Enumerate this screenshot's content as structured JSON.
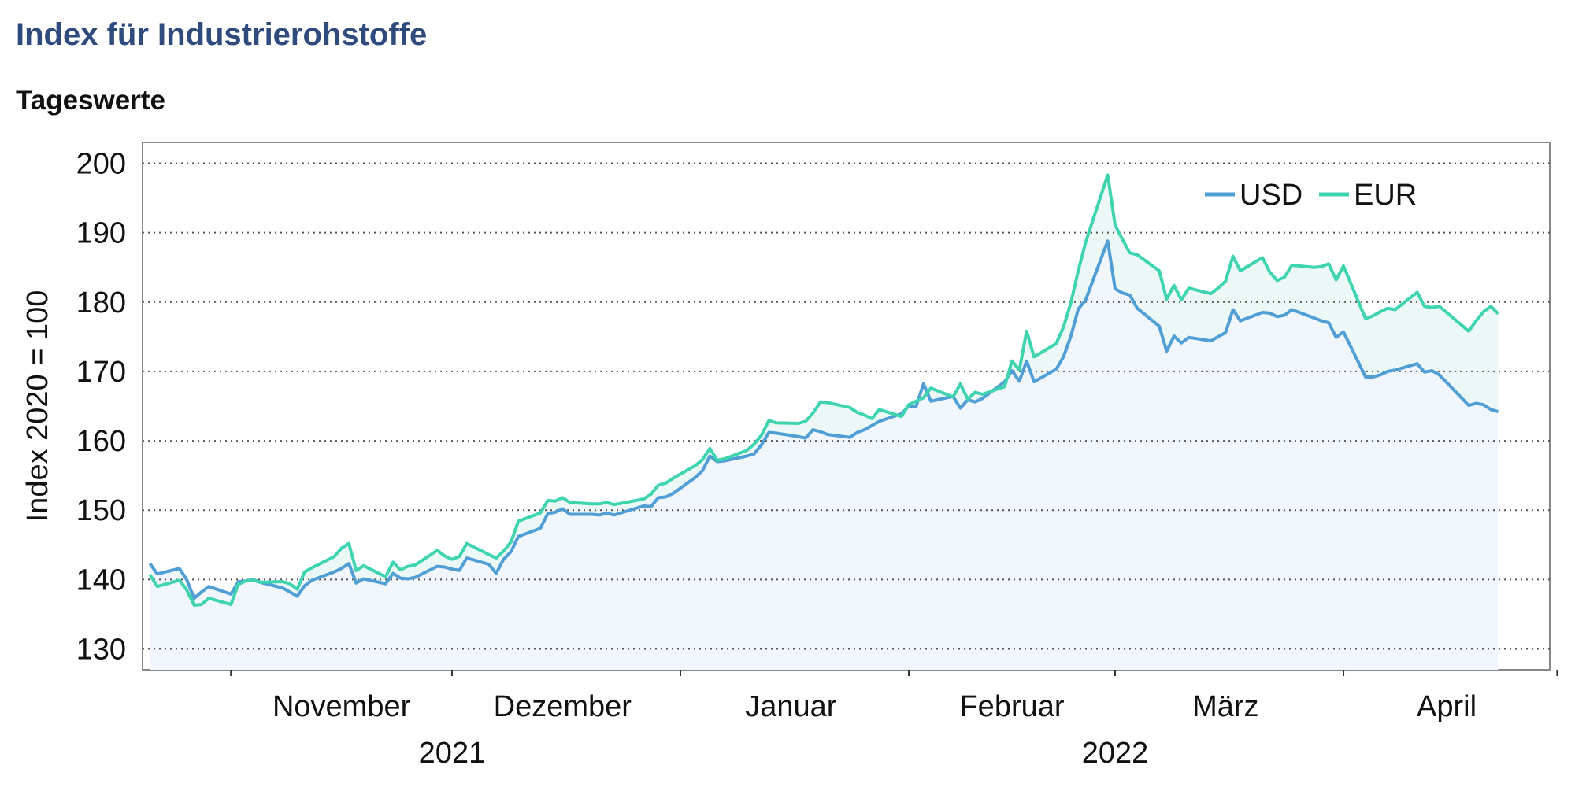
{
  "header": {
    "title": "Index für Industrierohstoffe",
    "subtitle": "Tageswerte"
  },
  "chart_data": {
    "type": "area",
    "title": "Index für Industrierohstoffe",
    "subtitle": "Tageswerte",
    "xlabel": "",
    "ylabel": "Index 2020 = 100",
    "ylim": [
      127,
      203
    ],
    "yticks": [
      130,
      140,
      150,
      160,
      170,
      180,
      190,
      200
    ],
    "grid": true,
    "legend_position": "top-right",
    "x_range": [
      "2021-10-20",
      "2022-04-29"
    ],
    "month_labels": [
      {
        "label": "November",
        "date": "2021-11-16"
      },
      {
        "label": "Dezember",
        "date": "2021-12-16"
      },
      {
        "label": "Januar",
        "date": "2022-01-16"
      },
      {
        "label": "Februar",
        "date": "2022-02-15"
      },
      {
        "label": "März",
        "date": "2022-03-16"
      },
      {
        "label": "April",
        "date": "2022-04-15"
      }
    ],
    "month_boundaries": [
      "2021-11-01",
      "2021-12-01",
      "2022-01-01",
      "2022-02-01",
      "2022-03-01",
      "2022-04-01",
      "2022-04-30"
    ],
    "year_labels": [
      {
        "label": "2021",
        "date": "2021-12-01"
      },
      {
        "label": "2022",
        "date": "2022-03-01"
      }
    ],
    "colors": {
      "USD": "#4f9fd6",
      "EUR": "#3fd4b0",
      "fill": "#f0f6fb",
      "grid": "#555555"
    },
    "series": [
      {
        "name": "USD",
        "color": "#4f9fd6",
        "points": [
          [
            "2021-10-21",
            142.3
          ],
          [
            "2021-10-22",
            140.8
          ],
          [
            "2021-10-25",
            141.6
          ],
          [
            "2021-10-26",
            140.0
          ],
          [
            "2021-10-27",
            137.3
          ],
          [
            "2021-10-28",
            138.2
          ],
          [
            "2021-10-29",
            139.0
          ],
          [
            "2021-11-01",
            137.9
          ],
          [
            "2021-11-02",
            139.7
          ],
          [
            "2021-11-03",
            139.8
          ],
          [
            "2021-11-04",
            140.0
          ],
          [
            "2021-11-05",
            139.6
          ],
          [
            "2021-11-08",
            138.8
          ],
          [
            "2021-11-09",
            138.2
          ],
          [
            "2021-11-10",
            137.6
          ],
          [
            "2021-11-11",
            139.1
          ],
          [
            "2021-11-12",
            139.9
          ],
          [
            "2021-11-15",
            141.1
          ],
          [
            "2021-11-16",
            141.6
          ],
          [
            "2021-11-17",
            142.3
          ],
          [
            "2021-11-18",
            139.5
          ],
          [
            "2021-11-19",
            140.1
          ],
          [
            "2021-11-22",
            139.4
          ],
          [
            "2021-11-23",
            140.9
          ],
          [
            "2021-11-24",
            140.2
          ],
          [
            "2021-11-25",
            140.1
          ],
          [
            "2021-11-26",
            140.3
          ],
          [
            "2021-11-29",
            141.9
          ],
          [
            "2021-11-30",
            141.8
          ],
          [
            "2021-12-01",
            141.5
          ],
          [
            "2021-12-02",
            141.3
          ],
          [
            "2021-12-03",
            143.1
          ],
          [
            "2021-12-06",
            142.2
          ],
          [
            "2021-12-07",
            140.9
          ],
          [
            "2021-12-08",
            142.9
          ],
          [
            "2021-12-09",
            144.0
          ],
          [
            "2021-12-10",
            146.2
          ],
          [
            "2021-12-13",
            147.4
          ],
          [
            "2021-12-14",
            149.5
          ],
          [
            "2021-12-15",
            149.7
          ],
          [
            "2021-12-16",
            150.2
          ],
          [
            "2021-12-17",
            149.4
          ],
          [
            "2021-12-20",
            149.4
          ],
          [
            "2021-12-21",
            149.3
          ],
          [
            "2021-12-22",
            149.6
          ],
          [
            "2021-12-23",
            149.3
          ],
          [
            "2021-12-27",
            150.6
          ],
          [
            "2021-12-28",
            150.5
          ],
          [
            "2021-12-29",
            151.8
          ],
          [
            "2021-12-30",
            151.9
          ],
          [
            "2021-12-31",
            152.4
          ],
          [
            "2022-01-03",
            154.7
          ],
          [
            "2022-01-04",
            155.7
          ],
          [
            "2022-01-05",
            157.8
          ],
          [
            "2022-01-06",
            157.0
          ],
          [
            "2022-01-07",
            157.1
          ],
          [
            "2022-01-10",
            157.8
          ],
          [
            "2022-01-11",
            158.1
          ],
          [
            "2022-01-12",
            159.4
          ],
          [
            "2022-01-13",
            161.2
          ],
          [
            "2022-01-14",
            161.1
          ],
          [
            "2022-01-17",
            160.6
          ],
          [
            "2022-01-18",
            160.4
          ],
          [
            "2022-01-19",
            161.6
          ],
          [
            "2022-01-20",
            161.3
          ],
          [
            "2022-01-21",
            160.9
          ],
          [
            "2022-01-24",
            160.5
          ],
          [
            "2022-01-25",
            161.2
          ],
          [
            "2022-01-26",
            161.6
          ],
          [
            "2022-01-27",
            162.2
          ],
          [
            "2022-01-28",
            162.8
          ],
          [
            "2022-01-31",
            163.9
          ],
          [
            "2022-02-01",
            165.0
          ],
          [
            "2022-02-02",
            165.0
          ],
          [
            "2022-02-03",
            168.2
          ],
          [
            "2022-02-04",
            165.7
          ],
          [
            "2022-02-07",
            166.4
          ],
          [
            "2022-02-08",
            164.7
          ],
          [
            "2022-02-09",
            165.9
          ],
          [
            "2022-02-10",
            165.6
          ],
          [
            "2022-02-11",
            166.1
          ],
          [
            "2022-02-14",
            168.5
          ],
          [
            "2022-02-15",
            170.1
          ],
          [
            "2022-02-16",
            168.6
          ],
          [
            "2022-02-17",
            171.5
          ],
          [
            "2022-02-18",
            168.5
          ],
          [
            "2022-02-21",
            170.3
          ],
          [
            "2022-02-22",
            172.1
          ],
          [
            "2022-02-23",
            175.1
          ],
          [
            "2022-02-24",
            179.0
          ],
          [
            "2022-02-25",
            180.3
          ],
          [
            "2022-02-28",
            188.8
          ],
          [
            "2022-03-01",
            181.9
          ],
          [
            "2022-03-02",
            181.3
          ],
          [
            "2022-03-03",
            181.0
          ],
          [
            "2022-03-04",
            179.1
          ],
          [
            "2022-03-07",
            176.5
          ],
          [
            "2022-03-08",
            172.9
          ],
          [
            "2022-03-09",
            175.1
          ],
          [
            "2022-03-10",
            174.1
          ],
          [
            "2022-03-11",
            174.9
          ],
          [
            "2022-03-14",
            174.4
          ],
          [
            "2022-03-15",
            175.0
          ],
          [
            "2022-03-16",
            175.6
          ],
          [
            "2022-03-17",
            178.9
          ],
          [
            "2022-03-18",
            177.3
          ],
          [
            "2022-03-21",
            178.5
          ],
          [
            "2022-03-22",
            178.4
          ],
          [
            "2022-03-23",
            177.9
          ],
          [
            "2022-03-24",
            178.1
          ],
          [
            "2022-03-25",
            178.9
          ],
          [
            "2022-03-28",
            177.7
          ],
          [
            "2022-03-29",
            177.3
          ],
          [
            "2022-03-30",
            177.0
          ],
          [
            "2022-03-31",
            174.9
          ],
          [
            "2022-04-01",
            175.7
          ],
          [
            "2022-04-04",
            169.2
          ],
          [
            "2022-04-05",
            169.2
          ],
          [
            "2022-04-06",
            169.5
          ],
          [
            "2022-04-07",
            170.0
          ],
          [
            "2022-04-08",
            170.2
          ],
          [
            "2022-04-11",
            171.1
          ],
          [
            "2022-04-12",
            169.9
          ],
          [
            "2022-04-13",
            170.1
          ],
          [
            "2022-04-14",
            169.5
          ],
          [
            "2022-04-18",
            165.1
          ],
          [
            "2022-04-19",
            165.4
          ],
          [
            "2022-04-20",
            165.2
          ],
          [
            "2022-04-21",
            164.5
          ],
          [
            "2022-04-22",
            164.2
          ]
        ]
      },
      {
        "name": "EUR",
        "color": "#3fd4b0",
        "points": [
          [
            "2021-10-21",
            140.7
          ],
          [
            "2021-10-22",
            139.0
          ],
          [
            "2021-10-25",
            139.9
          ],
          [
            "2021-10-26",
            138.5
          ],
          [
            "2021-10-27",
            136.3
          ],
          [
            "2021-10-28",
            136.4
          ],
          [
            "2021-10-29",
            137.3
          ],
          [
            "2021-11-01",
            136.4
          ],
          [
            "2021-11-02",
            139.3
          ],
          [
            "2021-11-03",
            139.8
          ],
          [
            "2021-11-04",
            139.9
          ],
          [
            "2021-11-05",
            139.6
          ],
          [
            "2021-11-08",
            139.7
          ],
          [
            "2021-11-09",
            139.4
          ],
          [
            "2021-11-10",
            138.6
          ],
          [
            "2021-11-11",
            141.1
          ],
          [
            "2021-11-12",
            141.7
          ],
          [
            "2021-11-15",
            143.3
          ],
          [
            "2021-11-16",
            144.5
          ],
          [
            "2021-11-17",
            145.2
          ],
          [
            "2021-11-18",
            141.3
          ],
          [
            "2021-11-19",
            142.0
          ],
          [
            "2021-11-22",
            140.4
          ],
          [
            "2021-11-23",
            142.5
          ],
          [
            "2021-11-24",
            141.4
          ],
          [
            "2021-11-25",
            141.9
          ],
          [
            "2021-11-26",
            142.1
          ],
          [
            "2021-11-29",
            144.2
          ],
          [
            "2021-11-30",
            143.4
          ],
          [
            "2021-12-01",
            142.9
          ],
          [
            "2021-12-02",
            143.3
          ],
          [
            "2021-12-03",
            145.2
          ],
          [
            "2021-12-06",
            143.6
          ],
          [
            "2021-12-07",
            143.1
          ],
          [
            "2021-12-08",
            144.1
          ],
          [
            "2021-12-09",
            145.4
          ],
          [
            "2021-12-10",
            148.4
          ],
          [
            "2021-12-13",
            149.6
          ],
          [
            "2021-12-14",
            151.4
          ],
          [
            "2021-12-15",
            151.3
          ],
          [
            "2021-12-16",
            151.8
          ],
          [
            "2021-12-17",
            151.1
          ],
          [
            "2021-12-20",
            150.9
          ],
          [
            "2021-12-21",
            150.9
          ],
          [
            "2021-12-22",
            151.1
          ],
          [
            "2021-12-23",
            150.8
          ],
          [
            "2021-12-27",
            151.6
          ],
          [
            "2021-12-28",
            152.3
          ],
          [
            "2021-12-29",
            153.6
          ],
          [
            "2021-12-30",
            153.9
          ],
          [
            "2021-12-31",
            154.6
          ],
          [
            "2022-01-03",
            156.4
          ],
          [
            "2022-01-04",
            157.3
          ],
          [
            "2022-01-05",
            158.9
          ],
          [
            "2022-01-06",
            157.2
          ],
          [
            "2022-01-07",
            157.4
          ],
          [
            "2022-01-10",
            158.6
          ],
          [
            "2022-01-11",
            159.5
          ],
          [
            "2022-01-12",
            160.8
          ],
          [
            "2022-01-13",
            162.9
          ],
          [
            "2022-01-14",
            162.6
          ],
          [
            "2022-01-17",
            162.5
          ],
          [
            "2022-01-18",
            162.8
          ],
          [
            "2022-01-19",
            164.0
          ],
          [
            "2022-01-20",
            165.6
          ],
          [
            "2022-01-21",
            165.5
          ],
          [
            "2022-01-24",
            164.8
          ],
          [
            "2022-01-25",
            164.1
          ],
          [
            "2022-01-26",
            163.7
          ],
          [
            "2022-01-27",
            163.2
          ],
          [
            "2022-01-28",
            164.5
          ],
          [
            "2022-01-31",
            163.5
          ],
          [
            "2022-02-01",
            165.2
          ],
          [
            "2022-02-02",
            165.7
          ],
          [
            "2022-02-03",
            166.2
          ],
          [
            "2022-02-04",
            167.6
          ],
          [
            "2022-02-07",
            166.3
          ],
          [
            "2022-02-08",
            168.2
          ],
          [
            "2022-02-09",
            166.0
          ],
          [
            "2022-02-10",
            167.0
          ],
          [
            "2022-02-11",
            166.7
          ],
          [
            "2022-02-14",
            167.8
          ],
          [
            "2022-02-15",
            171.5
          ],
          [
            "2022-02-16",
            170.2
          ],
          [
            "2022-02-17",
            175.8
          ],
          [
            "2022-02-18",
            172.1
          ],
          [
            "2022-02-21",
            174.0
          ],
          [
            "2022-02-22",
            176.4
          ],
          [
            "2022-02-23",
            179.9
          ],
          [
            "2022-02-24",
            184.5
          ],
          [
            "2022-02-25",
            188.6
          ],
          [
            "2022-02-28",
            198.3
          ],
          [
            "2022-03-01",
            191.1
          ],
          [
            "2022-03-02",
            189.0
          ],
          [
            "2022-03-03",
            187.1
          ],
          [
            "2022-03-04",
            186.8
          ],
          [
            "2022-03-07",
            184.5
          ],
          [
            "2022-03-08",
            180.4
          ],
          [
            "2022-03-09",
            182.4
          ],
          [
            "2022-03-10",
            180.3
          ],
          [
            "2022-03-11",
            182.0
          ],
          [
            "2022-03-14",
            181.2
          ],
          [
            "2022-03-15",
            182.0
          ],
          [
            "2022-03-16",
            183.0
          ],
          [
            "2022-03-17",
            186.6
          ],
          [
            "2022-03-18",
            184.5
          ],
          [
            "2022-03-21",
            186.4
          ],
          [
            "2022-03-22",
            184.3
          ],
          [
            "2022-03-23",
            183.1
          ],
          [
            "2022-03-24",
            183.6
          ],
          [
            "2022-03-25",
            185.3
          ],
          [
            "2022-03-28",
            185.0
          ],
          [
            "2022-03-29",
            185.1
          ],
          [
            "2022-03-30",
            185.5
          ],
          [
            "2022-03-31",
            183.2
          ],
          [
            "2022-04-01",
            185.2
          ],
          [
            "2022-04-04",
            177.6
          ],
          [
            "2022-04-05",
            178.0
          ],
          [
            "2022-04-06",
            178.6
          ],
          [
            "2022-04-07",
            179.1
          ],
          [
            "2022-04-08",
            178.9
          ],
          [
            "2022-04-11",
            181.4
          ],
          [
            "2022-04-12",
            179.4
          ],
          [
            "2022-04-13",
            179.2
          ],
          [
            "2022-04-14",
            179.4
          ],
          [
            "2022-04-18",
            175.8
          ],
          [
            "2022-04-19",
            177.3
          ],
          [
            "2022-04-20",
            178.6
          ],
          [
            "2022-04-21",
            179.4
          ],
          [
            "2022-04-22",
            178.3
          ]
        ]
      }
    ]
  }
}
